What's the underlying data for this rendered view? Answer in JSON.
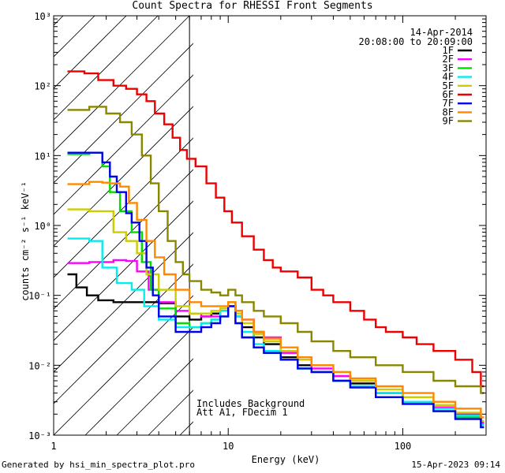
{
  "chart_data": {
    "type": "line",
    "title": "Count Spectra for RHESSI Front Segments",
    "xlabel": "Energy (keV)",
    "ylabel": "counts cm⁻² s⁻¹ keV⁻¹",
    "xscale": "log",
    "yscale": "log",
    "xlim": [
      1,
      300
    ],
    "ylim": [
      0.001,
      1000
    ],
    "x_tick_labels": [
      "1",
      "10",
      "100"
    ],
    "y_tick_labels": [
      "10⁻³",
      "10⁻²",
      "10⁻¹",
      "10⁰",
      "10¹",
      "10²",
      "10³"
    ],
    "date": "14-Apr-2014",
    "time_range": "20:08:00 to 20:09:00",
    "annotation_lines": [
      "Includes Background",
      "Att A1, FDecim 1"
    ],
    "shaded_region_upper_keV": 6,
    "legend_position": "top-right",
    "series": [
      {
        "name": "1F",
        "color": "#000000",
        "points": [
          [
            1.2,
            0.2
          ],
          [
            1.35,
            0.13
          ],
          [
            1.55,
            0.1
          ],
          [
            1.8,
            0.085
          ],
          [
            2.2,
            0.08
          ],
          [
            3,
            0.08
          ],
          [
            4,
            0.077
          ],
          [
            5,
            0.05
          ],
          [
            6,
            0.045
          ],
          [
            7,
            0.05
          ],
          [
            8,
            0.055
          ],
          [
            9,
            0.06
          ],
          [
            10,
            0.07
          ],
          [
            11,
            0.05
          ],
          [
            12,
            0.035
          ],
          [
            14,
            0.025
          ],
          [
            16,
            0.02
          ],
          [
            20,
            0.013
          ],
          [
            25,
            0.01
          ],
          [
            30,
            0.008
          ],
          [
            40,
            0.007
          ],
          [
            50,
            0.0055
          ],
          [
            70,
            0.004
          ],
          [
            100,
            0.003
          ],
          [
            150,
            0.0025
          ],
          [
            200,
            0.002
          ],
          [
            280,
            0.0015
          ]
        ]
      },
      {
        "name": "2F",
        "color": "#ff00ff",
        "points": [
          [
            1.2,
            0.29
          ],
          [
            1.6,
            0.3
          ],
          [
            2.2,
            0.32
          ],
          [
            2.6,
            0.31
          ],
          [
            3,
            0.22
          ],
          [
            3.5,
            0.12
          ],
          [
            4,
            0.08
          ],
          [
            5,
            0.06
          ],
          [
            6,
            0.055
          ],
          [
            7,
            0.05
          ],
          [
            8,
            0.05
          ],
          [
            9,
            0.06
          ],
          [
            10,
            0.08
          ],
          [
            11,
            0.06
          ],
          [
            12,
            0.045
          ],
          [
            14,
            0.03
          ],
          [
            16,
            0.025
          ],
          [
            20,
            0.015
          ],
          [
            25,
            0.012
          ],
          [
            30,
            0.009
          ],
          [
            40,
            0.007
          ],
          [
            50,
            0.006
          ],
          [
            70,
            0.004
          ],
          [
            100,
            0.003
          ],
          [
            150,
            0.0025
          ],
          [
            200,
            0.002
          ],
          [
            280,
            0.0015
          ]
        ]
      },
      {
        "name": "3F",
        "color": "#00dd00",
        "points": [
          [
            1.2,
            10.5
          ],
          [
            1.6,
            11
          ],
          [
            1.9,
            7
          ],
          [
            2.1,
            3
          ],
          [
            2.4,
            1.6
          ],
          [
            2.8,
            0.8
          ],
          [
            3.2,
            0.3
          ],
          [
            3.6,
            0.12
          ],
          [
            4,
            0.065
          ],
          [
            5,
            0.04
          ],
          [
            6,
            0.035
          ],
          [
            7,
            0.04
          ],
          [
            8,
            0.045
          ],
          [
            9,
            0.05
          ],
          [
            10,
            0.07
          ],
          [
            11,
            0.04
          ],
          [
            12,
            0.025
          ],
          [
            14,
            0.018
          ],
          [
            16,
            0.015
          ],
          [
            20,
            0.012
          ],
          [
            25,
            0.009
          ],
          [
            30,
            0.008
          ],
          [
            40,
            0.006
          ],
          [
            50,
            0.005
          ],
          [
            70,
            0.0035
          ],
          [
            100,
            0.0028
          ],
          [
            150,
            0.0022
          ],
          [
            200,
            0.0018
          ],
          [
            280,
            0.0013
          ]
        ]
      },
      {
        "name": "4F",
        "color": "#00eeee",
        "points": [
          [
            1.2,
            0.65
          ],
          [
            1.6,
            0.6
          ],
          [
            1.9,
            0.25
          ],
          [
            2.3,
            0.15
          ],
          [
            2.8,
            0.12
          ],
          [
            3.3,
            0.07
          ],
          [
            4,
            0.045
          ],
          [
            5,
            0.035
          ],
          [
            6,
            0.035
          ],
          [
            7,
            0.04
          ],
          [
            8,
            0.045
          ],
          [
            9,
            0.06
          ],
          [
            10,
            0.08
          ],
          [
            11,
            0.05
          ],
          [
            12,
            0.03
          ],
          [
            14,
            0.02
          ],
          [
            16,
            0.016
          ],
          [
            20,
            0.012
          ],
          [
            25,
            0.009
          ],
          [
            30,
            0.008
          ],
          [
            40,
            0.006
          ],
          [
            50,
            0.005
          ],
          [
            70,
            0.004
          ],
          [
            100,
            0.003
          ],
          [
            150,
            0.0024
          ],
          [
            200,
            0.0019
          ],
          [
            280,
            0.0014
          ]
        ]
      },
      {
        "name": "5F",
        "color": "#cccc00",
        "points": [
          [
            1.2,
            1.7
          ],
          [
            1.6,
            1.6
          ],
          [
            2.2,
            0.8
          ],
          [
            2.6,
            0.6
          ],
          [
            3,
            0.4
          ],
          [
            3.4,
            0.2
          ],
          [
            4,
            0.12
          ],
          [
            5,
            0.07
          ],
          [
            6,
            0.055
          ],
          [
            7,
            0.055
          ],
          [
            8,
            0.06
          ],
          [
            9,
            0.065
          ],
          [
            10,
            0.08
          ],
          [
            11,
            0.055
          ],
          [
            12,
            0.04
          ],
          [
            14,
            0.028
          ],
          [
            16,
            0.022
          ],
          [
            20,
            0.016
          ],
          [
            25,
            0.012
          ],
          [
            30,
            0.01
          ],
          [
            40,
            0.008
          ],
          [
            50,
            0.006
          ],
          [
            70,
            0.0045
          ],
          [
            100,
            0.0035
          ],
          [
            150,
            0.0027
          ],
          [
            200,
            0.0021
          ],
          [
            280,
            0.0016
          ]
        ]
      },
      {
        "name": "6F",
        "color": "#ee0000",
        "points": [
          [
            1.2,
            160
          ],
          [
            1.5,
            150
          ],
          [
            1.8,
            120
          ],
          [
            2.2,
            100
          ],
          [
            2.6,
            90
          ],
          [
            3,
            75
          ],
          [
            3.4,
            60
          ],
          [
            3.8,
            40
          ],
          [
            4.3,
            28
          ],
          [
            4.8,
            18
          ],
          [
            5.3,
            12
          ],
          [
            5.8,
            9
          ],
          [
            6.5,
            7
          ],
          [
            7.5,
            4
          ],
          [
            8.5,
            2.5
          ],
          [
            9.5,
            1.6
          ],
          [
            10.5,
            1.1
          ],
          [
            12,
            0.7
          ],
          [
            14,
            0.45
          ],
          [
            16,
            0.32
          ],
          [
            18,
            0.25
          ],
          [
            20,
            0.22
          ],
          [
            25,
            0.18
          ],
          [
            30,
            0.12
          ],
          [
            35,
            0.1
          ],
          [
            40,
            0.08
          ],
          [
            50,
            0.06
          ],
          [
            60,
            0.045
          ],
          [
            70,
            0.035
          ],
          [
            80,
            0.03
          ],
          [
            100,
            0.025
          ],
          [
            120,
            0.02
          ],
          [
            150,
            0.016
          ],
          [
            200,
            0.012
          ],
          [
            250,
            0.008
          ],
          [
            280,
            0.005
          ]
        ]
      },
      {
        "name": "7F",
        "color": "#0000ee",
        "points": [
          [
            1.2,
            11
          ],
          [
            1.6,
            11
          ],
          [
            1.9,
            8
          ],
          [
            2.1,
            5
          ],
          [
            2.3,
            3
          ],
          [
            2.6,
            1.5
          ],
          [
            2.8,
            1.1
          ],
          [
            3.1,
            0.6
          ],
          [
            3.4,
            0.25
          ],
          [
            3.7,
            0.1
          ],
          [
            4,
            0.05
          ],
          [
            5,
            0.03
          ],
          [
            6,
            0.03
          ],
          [
            7,
            0.035
          ],
          [
            8,
            0.04
          ],
          [
            9,
            0.05
          ],
          [
            10,
            0.07
          ],
          [
            11,
            0.04
          ],
          [
            12,
            0.025
          ],
          [
            14,
            0.018
          ],
          [
            16,
            0.015
          ],
          [
            20,
            0.012
          ],
          [
            25,
            0.009
          ],
          [
            30,
            0.008
          ],
          [
            40,
            0.006
          ],
          [
            50,
            0.0048
          ],
          [
            70,
            0.0035
          ],
          [
            100,
            0.0028
          ],
          [
            150,
            0.0022
          ],
          [
            200,
            0.0017
          ],
          [
            280,
            0.0013
          ]
        ]
      },
      {
        "name": "8F",
        "color": "#ff8800",
        "points": [
          [
            1.2,
            3.9
          ],
          [
            1.6,
            4.2
          ],
          [
            1.9,
            4.1
          ],
          [
            2.1,
            4.0
          ],
          [
            2.4,
            3.6
          ],
          [
            2.7,
            2.1
          ],
          [
            3,
            1.2
          ],
          [
            3.4,
            0.6
          ],
          [
            3.8,
            0.35
          ],
          [
            4.3,
            0.2
          ],
          [
            5,
            0.12
          ],
          [
            6,
            0.08
          ],
          [
            7,
            0.07
          ],
          [
            8,
            0.07
          ],
          [
            9,
            0.07
          ],
          [
            10,
            0.08
          ],
          [
            11,
            0.06
          ],
          [
            12,
            0.045
          ],
          [
            14,
            0.03
          ],
          [
            16,
            0.024
          ],
          [
            20,
            0.018
          ],
          [
            25,
            0.013
          ],
          [
            30,
            0.01
          ],
          [
            40,
            0.008
          ],
          [
            50,
            0.0065
          ],
          [
            70,
            0.005
          ],
          [
            100,
            0.004
          ],
          [
            150,
            0.003
          ],
          [
            200,
            0.0024
          ],
          [
            280,
            0.0018
          ]
        ]
      },
      {
        "name": "9F",
        "color": "#888800",
        "points": [
          [
            1.2,
            45
          ],
          [
            1.6,
            50
          ],
          [
            2,
            40
          ],
          [
            2.4,
            30
          ],
          [
            2.8,
            20
          ],
          [
            3.2,
            10
          ],
          [
            3.6,
            4
          ],
          [
            4,
            1.6
          ],
          [
            4.5,
            0.6
          ],
          [
            5,
            0.3
          ],
          [
            5.5,
            0.2
          ],
          [
            6,
            0.16
          ],
          [
            7,
            0.12
          ],
          [
            8,
            0.11
          ],
          [
            9,
            0.1
          ],
          [
            10,
            0.12
          ],
          [
            11,
            0.1
          ],
          [
            12,
            0.08
          ],
          [
            14,
            0.06
          ],
          [
            16,
            0.05
          ],
          [
            20,
            0.04
          ],
          [
            25,
            0.03
          ],
          [
            30,
            0.022
          ],
          [
            40,
            0.016
          ],
          [
            50,
            0.013
          ],
          [
            70,
            0.01
          ],
          [
            100,
            0.008
          ],
          [
            150,
            0.006
          ],
          [
            200,
            0.005
          ],
          [
            280,
            0.004
          ]
        ]
      }
    ]
  },
  "footer": {
    "generated_by": "Generated by hsi_min_spectra_plot.pro",
    "timestamp": "15-Apr-2023 09:14"
  }
}
